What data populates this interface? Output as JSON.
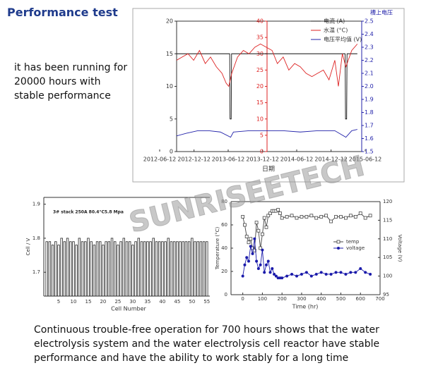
{
  "header": {
    "title": "Performance test"
  },
  "intro_text": "it has been running for 20000 hours with stable performance",
  "watermark": "SUNRISEETECH",
  "conclusion_text": "Continuous trouble-free operation for 700 hours shows that the water electrolysis system and the water electrolysis cell reactor have stable performance and have the ability to work stably for a long time",
  "chart_data": [
    {
      "type": "line",
      "xlabel": "日期",
      "y3label": "槽上电压",
      "xlim": [
        "2012-06-12",
        "2015-06-12"
      ],
      "xticks": [
        "2012-06-12",
        "2012-12-12",
        "2013-06-12",
        "2013-12-12",
        "2014-06-12",
        "2014-12-12",
        "2015-06-12"
      ],
      "ylim": [
        0,
        20
      ],
      "yticks": [
        0,
        5,
        10,
        15,
        20
      ],
      "y2lim": [
        0,
        40
      ],
      "y2ticks": [
        0,
        5,
        10,
        15,
        20,
        25,
        30,
        35,
        40
      ],
      "y3lim": [
        1.5,
        2.5
      ],
      "y3ticks": [
        1.5,
        1.6,
        1.7,
        1.8,
        1.9,
        {
          "value": 2,
          "label": "2.0"
        },
        2.1,
        2.2,
        2.3,
        2.4,
        2.5
      ],
      "series": [
        {
          "name": "电流 (A)",
          "color": "#111111",
          "x": [
            "2012-09-10",
            "2013-06-20",
            "2013-06-22",
            "2013-06-28",
            "2013-06-30",
            "2015-02-25",
            "2015-02-27",
            "2015-03-05",
            "2015-03-07",
            "2015-05-01"
          ],
          "values": [
            15,
            15,
            5,
            5,
            15,
            15,
            5,
            5,
            15,
            15
          ]
        },
        {
          "name": "水温 (°C)",
          "color": "#dd2222",
          "axis": "y2",
          "x": [
            "2012-09-10",
            "2012-10-10",
            "2012-11-10",
            "2012-12-10",
            "2013-01-10",
            "2013-02-10",
            "2013-03-10",
            "2013-04-10",
            "2013-05-10",
            "2013-06-01",
            "2013-06-15",
            "2013-07-01",
            "2013-08-01",
            "2013-09-01",
            "2013-10-01",
            "2013-11-01",
            "2013-12-01",
            "2014-01-01",
            "2014-02-01",
            "2014-03-01",
            "2014-04-01",
            "2014-05-01",
            "2014-06-01",
            "2014-07-01",
            "2014-08-01",
            "2014-09-01",
            "2014-10-01",
            "2014-11-01",
            "2014-12-01",
            "2015-01-01",
            "2015-01-20",
            "2015-02-10",
            "2015-03-01",
            "2015-04-01",
            "2015-05-01"
          ],
          "values": [
            28,
            29,
            30,
            28,
            31,
            27,
            29,
            26,
            24,
            21,
            20,
            24,
            29,
            31,
            30,
            32,
            33,
            32,
            31,
            27,
            29,
            25,
            27,
            26,
            24,
            23,
            24,
            25,
            22,
            28,
            20,
            30,
            26,
            31,
            33
          ]
        },
        {
          "name": "电压平均值 (V)",
          "color": "#2222aa",
          "axis": "y3",
          "x": [
            "2012-09-10",
            "2012-11-01",
            "2013-01-01",
            "2013-03-01",
            "2013-05-01",
            "2013-06-25",
            "2013-07-10",
            "2013-10-01",
            "2014-01-01",
            "2014-04-01",
            "2014-07-01",
            "2014-10-01",
            "2015-01-01",
            "2015-03-01",
            "2015-04-01",
            "2015-05-01"
          ],
          "values": [
            1.62,
            1.64,
            1.66,
            1.66,
            1.65,
            1.61,
            1.65,
            1.66,
            1.66,
            1.66,
            1.65,
            1.66,
            1.66,
            1.61,
            1.66,
            1.67
          ]
        }
      ]
    },
    {
      "type": "bar",
      "ylabel": "Cell / V",
      "xlabel": "Cell Number",
      "annotation": "3# stack 250A 80.4°C5.8 Mpa",
      "color": "#ffffff",
      "xlim": [
        0,
        56
      ],
      "xticks": [
        5,
        10,
        15,
        20,
        25,
        30,
        35,
        40,
        45,
        50,
        55
      ],
      "ylim": [
        1.63,
        1.92
      ],
      "yticks": [
        1.7,
        1.8,
        1.9
      ],
      "x": [
        1,
        2,
        3,
        4,
        5,
        6,
        7,
        8,
        9,
        10,
        11,
        12,
        13,
        14,
        15,
        16,
        17,
        18,
        19,
        20,
        21,
        22,
        23,
        24,
        25,
        26,
        27,
        28,
        29,
        30,
        31,
        32,
        33,
        34,
        35,
        36,
        37,
        38,
        39,
        40,
        41,
        42,
        43,
        44,
        45,
        46,
        47,
        48,
        49,
        50,
        51,
        52,
        53,
        54,
        55
      ],
      "values": [
        1.79,
        1.79,
        1.78,
        1.79,
        1.78,
        1.8,
        1.79,
        1.8,
        1.79,
        1.79,
        1.78,
        1.8,
        1.79,
        1.79,
        1.8,
        1.79,
        1.78,
        1.79,
        1.79,
        1.78,
        1.79,
        1.79,
        1.8,
        1.79,
        1.78,
        1.79,
        1.8,
        1.79,
        1.79,
        1.78,
        1.79,
        1.8,
        1.79,
        1.79,
        1.79,
        1.79,
        1.8,
        1.79,
        1.79,
        1.79,
        1.79,
        1.8,
        1.79,
        1.79,
        1.79,
        1.79,
        1.79,
        1.79,
        1.79,
        1.8,
        1.79,
        1.79,
        1.79,
        1.79,
        1.79
      ]
    },
    {
      "type": "line",
      "ylabel": "Temperature (°C)",
      "y2label": "Voltage (V)",
      "xlabel": "Time (hr)",
      "xlim": [
        -60,
        700
      ],
      "xticks": [
        0,
        100,
        200,
        300,
        400,
        500,
        600,
        700
      ],
      "ylim": [
        0,
        80
      ],
      "yticks": [
        0,
        20,
        40,
        60,
        80
      ],
      "y2lim": [
        95,
        120
      ],
      "y2ticks": [
        95,
        100,
        105,
        110,
        115,
        120
      ],
      "x": [
        0,
        10,
        20,
        30,
        40,
        50,
        60,
        70,
        80,
        90,
        100,
        110,
        120,
        130,
        140,
        150,
        160,
        170,
        180,
        190,
        200,
        225,
        250,
        275,
        300,
        325,
        350,
        375,
        400,
        425,
        450,
        475,
        500,
        525,
        550,
        575,
        600,
        625,
        650
      ],
      "series": [
        {
          "name": "temp",
          "color": "#444444",
          "marker": "square-open",
          "values": [
            67,
            60,
            50,
            45,
            48,
            40,
            38,
            62,
            55,
            40,
            52,
            66,
            58,
            68,
            70,
            72,
            72,
            72,
            73,
            70,
            66,
            67,
            68,
            66,
            67,
            67,
            68,
            66,
            67,
            68,
            63,
            67,
            67,
            66,
            68,
            67,
            70,
            66,
            68
          ]
        },
        {
          "name": "voltage",
          "color": "#1a1aaa",
          "marker": "circle",
          "axis": "y2",
          "values": [
            100,
            103,
            105,
            104,
            108,
            106,
            110,
            104,
            102,
            103,
            107,
            101,
            103,
            104,
            101,
            102,
            100.5,
            100,
            99.5,
            99.5,
            99.5,
            100,
            100.5,
            100,
            100.5,
            101,
            100,
            100.5,
            101,
            100.5,
            100.5,
            101,
            101,
            100.5,
            101,
            101,
            102,
            101,
            100.5
          ]
        }
      ]
    }
  ]
}
